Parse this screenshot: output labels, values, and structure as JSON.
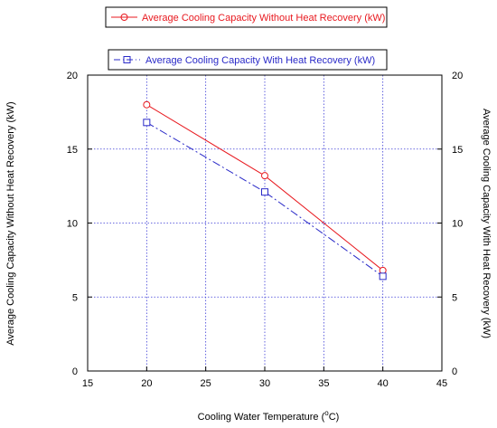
{
  "chart_data": {
    "type": "line",
    "x": [
      20,
      30,
      40
    ],
    "xlim": [
      15,
      45
    ],
    "ylim": [
      0,
      20
    ],
    "y2lim": [
      0,
      20
    ],
    "xticks": [
      15,
      20,
      25,
      30,
      35,
      40,
      45
    ],
    "yticks": [
      0,
      5,
      10,
      15,
      20
    ],
    "xlabel_main": "Cooling Water Temperature (",
    "xlabel_sup": "o",
    "xlabel_end": "C)",
    "ylabel": "Average Cooling Capacity Without Heat Recovery (kW)",
    "y2label": "Average Cooling Capacity With Heat Recovery (kW)",
    "grid": true,
    "legend_position": "top",
    "series": [
      {
        "name": "Average Cooling Capacity Without Heat Recovery (kW)",
        "values": [
          18.0,
          13.2,
          6.8
        ],
        "color": "#e8191f",
        "marker": "circle",
        "line_style": "solid",
        "axis": "left"
      },
      {
        "name": "Average Cooling Capacity With Heat Recovery (kW)",
        "values": [
          16.8,
          12.1,
          6.4
        ],
        "color": "#2a2ac8",
        "marker": "square",
        "line_style": "dash-dot",
        "axis": "right"
      }
    ]
  }
}
